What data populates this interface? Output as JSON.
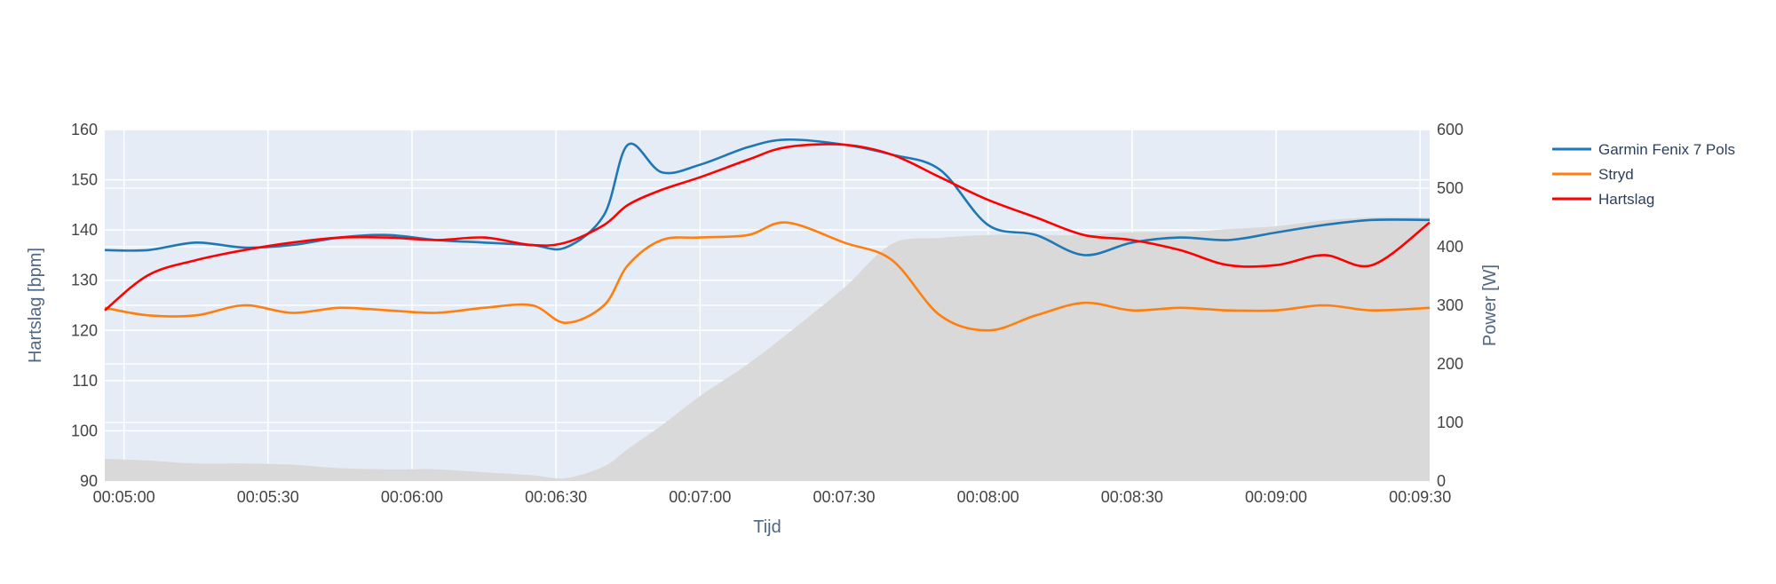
{
  "chart_data": {
    "type": "line",
    "title": "",
    "xlabel": "Tijd",
    "ylabel": "Hartslag [bpm]",
    "y2label": "Power [W]",
    "xlim": [
      "00:04:56",
      "00:09:32"
    ],
    "ylim": [
      90,
      160
    ],
    "y2lim": [
      0,
      600
    ],
    "x_ticks": [
      "00:05:00",
      "00:05:30",
      "00:06:00",
      "00:06:30",
      "00:07:00",
      "00:07:30",
      "00:08:00",
      "00:08:30",
      "00:09:00",
      "00:09:30"
    ],
    "y_ticks": [
      "90",
      "100",
      "110",
      "120",
      "130",
      "140",
      "150",
      "160"
    ],
    "y2_ticks": [
      "0",
      "100",
      "200",
      "300",
      "400",
      "500",
      "600"
    ],
    "grid": true,
    "legend_position": "top-right",
    "x": [
      "00:04:56",
      "00:05:05",
      "00:05:15",
      "00:05:25",
      "00:05:35",
      "00:05:45",
      "00:05:55",
      "00:06:05",
      "00:06:15",
      "00:06:25",
      "00:06:32",
      "00:06:40",
      "00:06:45",
      "00:06:52",
      "00:07:00",
      "00:07:10",
      "00:07:18",
      "00:07:30",
      "00:07:40",
      "00:07:50",
      "00:08:00",
      "00:08:10",
      "00:08:20",
      "00:08:30",
      "00:08:40",
      "00:08:50",
      "00:09:00",
      "00:09:10",
      "00:09:20",
      "00:09:32"
    ],
    "series": [
      {
        "name": "Garmin Fenix 7 Pols",
        "color": "#1f77b4",
        "axis": "y",
        "values": [
          136,
          136,
          137.5,
          136.5,
          137,
          138.5,
          139,
          138,
          137.5,
          137,
          136.5,
          143,
          157,
          151.5,
          153,
          156.5,
          158,
          157,
          155,
          152,
          141,
          139,
          135,
          137.5,
          138.5,
          138,
          139.5,
          141,
          142,
          142
        ]
      },
      {
        "name": "Stryd",
        "color": "#ff7f0e",
        "axis": "y",
        "values": [
          124.5,
          123,
          123,
          125,
          123.5,
          124.5,
          124,
          123.5,
          124.5,
          125,
          121.5,
          125,
          133,
          138,
          138.5,
          139,
          141.5,
          137.5,
          134,
          123,
          120,
          123,
          125.5,
          124,
          124.5,
          124,
          124,
          125,
          124,
          124.5
        ]
      },
      {
        "name": "Hartslag",
        "color": "#ff0000",
        "axis": "y",
        "values": [
          124,
          131,
          134,
          136,
          137.5,
          138.5,
          138.5,
          138,
          138.5,
          137,
          137.5,
          141,
          145,
          148,
          150.5,
          154,
          156.5,
          157,
          155,
          150.5,
          146,
          142.5,
          139,
          138,
          136,
          133,
          133,
          135,
          133,
          141.5
        ]
      },
      {
        "name": "",
        "color": "#d9d9d9",
        "axis": "y2",
        "type": "area",
        "values": [
          38,
          35,
          30,
          30,
          28,
          22,
          20,
          20,
          15,
          10,
          5,
          25,
          55,
          95,
          145,
          200,
          250,
          330,
          405,
          415,
          420,
          420,
          420,
          425,
          425,
          430,
          435,
          445,
          450,
          450
        ]
      }
    ]
  }
}
